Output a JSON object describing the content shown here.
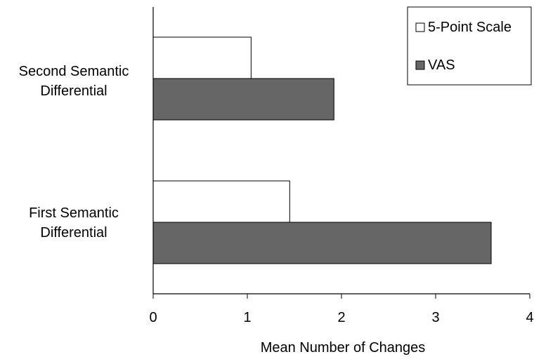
{
  "chart_data": {
    "type": "bar",
    "orientation": "horizontal",
    "categories": [
      "Second Semantic Differential",
      "First Semantic Differential"
    ],
    "category_label_lines": [
      [
        "Second Semantic",
        "Differential"
      ],
      [
        "First Semantic",
        "Differential"
      ]
    ],
    "series": [
      {
        "name": "5-Point Scale",
        "color": "#ffffff",
        "values": [
          1.04,
          1.45
        ]
      },
      {
        "name": "VAS",
        "color": "#666666",
        "values": [
          1.92,
          3.59
        ]
      }
    ],
    "xlabel": "Mean Number of Changes",
    "xlim": [
      0,
      4
    ],
    "xticks": [
      "0",
      "1",
      "2",
      "3",
      "4"
    ],
    "grid": false,
    "legend": "top-right"
  }
}
